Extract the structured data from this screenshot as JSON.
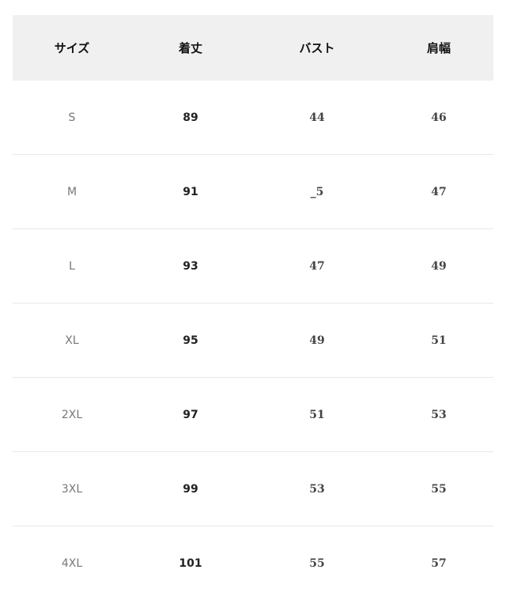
{
  "headers": [
    "サイズ",
    "着丈",
    "バスト",
    "肩幅"
  ],
  "rows": [
    [
      "S",
      "89",
      "44",
      "46"
    ],
    [
      "M",
      "91",
      "_5",
      "47"
    ],
    [
      "L",
      "93",
      "47",
      "49"
    ],
    [
      "XL",
      "95",
      "49",
      "51"
    ],
    [
      "2XL",
      "97",
      "51",
      "53"
    ],
    [
      "3XL",
      "99",
      "53",
      "55"
    ],
    [
      "4XL",
      "101",
      "55",
      "57"
    ]
  ]
}
